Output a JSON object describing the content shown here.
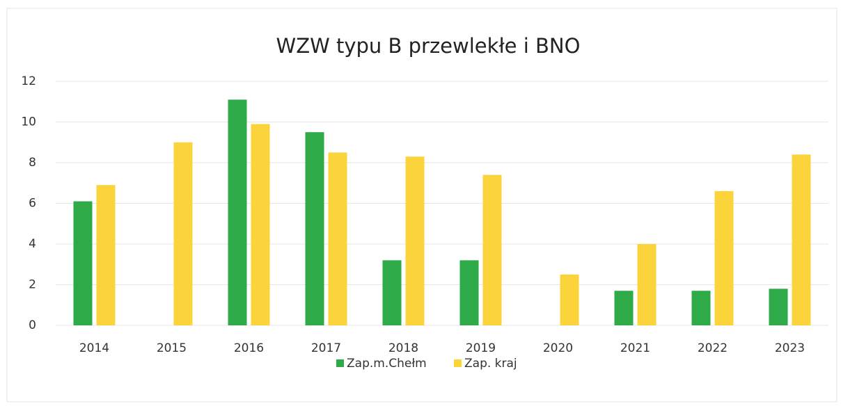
{
  "chart_data": {
    "type": "bar",
    "title": "WZW typu B przewlekłe i BNO",
    "categories": [
      "2014",
      "2015",
      "2016",
      "2017",
      "2018",
      "2019",
      "2020",
      "2021",
      "2022",
      "2023"
    ],
    "series": [
      {
        "name": "Zap.m.Chełm",
        "color": "#2eaa48",
        "values": [
          6.1,
          0,
          11.1,
          9.5,
          3.2,
          3.2,
          0,
          1.7,
          1.7,
          1.8
        ]
      },
      {
        "name": "Zap. kraj",
        "color": "#fbd43c",
        "values": [
          6.9,
          9.0,
          9.9,
          8.5,
          8.3,
          7.4,
          2.5,
          4.0,
          6.6,
          8.4
        ]
      }
    ],
    "ylim": [
      0,
      12
    ],
    "yticks": [
      0,
      2,
      4,
      6,
      8,
      10,
      12
    ],
    "grid": true,
    "legend": "bottom"
  }
}
